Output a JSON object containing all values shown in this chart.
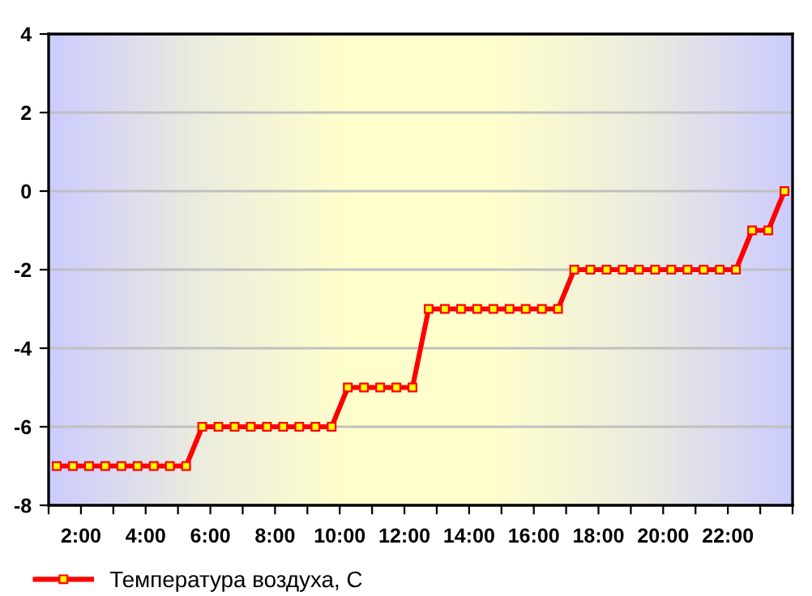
{
  "chart_data": {
    "type": "line",
    "x": [
      1.25,
      1.75,
      2.25,
      2.75,
      3.25,
      3.75,
      4.25,
      4.75,
      5.25,
      5.75,
      6.25,
      6.75,
      7.25,
      7.75,
      8.25,
      8.75,
      9.25,
      9.75,
      10.25,
      10.75,
      11.25,
      11.75,
      12.25,
      12.75,
      13.25,
      13.75,
      14.25,
      14.75,
      15.25,
      15.75,
      16.25,
      16.75,
      17.25,
      17.75,
      18.25,
      18.75,
      19.25,
      19.75,
      20.25,
      20.75,
      21.25,
      21.75,
      22.25,
      22.75,
      23.25,
      23.75
    ],
    "series": [
      {
        "name": "Температура воздуха, С",
        "color": "#ff0000",
        "values": [
          -7,
          -7,
          -7,
          -7,
          -7,
          -7,
          -7,
          -7,
          -7,
          -6,
          -6,
          -6,
          -6,
          -6,
          -6,
          -6,
          -6,
          -6,
          -5,
          -5,
          -5,
          -5,
          -5,
          -3,
          -3,
          -3,
          -3,
          -3,
          -3,
          -3,
          -3,
          -3,
          -2,
          -2,
          -2,
          -2,
          -2,
          -2,
          -2,
          -2,
          -2,
          -2,
          -2,
          -1,
          -1,
          0
        ]
      }
    ],
    "xlim": [
      1,
      24
    ],
    "xticks": [
      {
        "value": 1,
        "label": null
      },
      {
        "value": 2,
        "label": "2:00"
      },
      {
        "value": 3,
        "label": null
      },
      {
        "value": 4,
        "label": "4:00"
      },
      {
        "value": 5,
        "label": null
      },
      {
        "value": 6,
        "label": "6:00"
      },
      {
        "value": 7,
        "label": null
      },
      {
        "value": 8,
        "label": "8:00"
      },
      {
        "value": 9,
        "label": null
      },
      {
        "value": 10,
        "label": "10:00"
      },
      {
        "value": 11,
        "label": null
      },
      {
        "value": 12,
        "label": "12:00"
      },
      {
        "value": 13,
        "label": null
      },
      {
        "value": 14,
        "label": "14:00"
      },
      {
        "value": 15,
        "label": null
      },
      {
        "value": 16,
        "label": "16:00"
      },
      {
        "value": 17,
        "label": null
      },
      {
        "value": 18,
        "label": "18:00"
      },
      {
        "value": 19,
        "label": null
      },
      {
        "value": 20,
        "label": "20:00"
      },
      {
        "value": 21,
        "label": null
      },
      {
        "value": 22,
        "label": "22:00"
      },
      {
        "value": 23,
        "label": null
      },
      {
        "value": 24,
        "label": null
      }
    ],
    "ylim": [
      -8,
      4
    ],
    "yticks": [
      -8,
      -6,
      -4,
      -2,
      0,
      2,
      4
    ],
    "grid": "y",
    "legend": "bottom left",
    "marker": "square",
    "line_style": "solid"
  }
}
